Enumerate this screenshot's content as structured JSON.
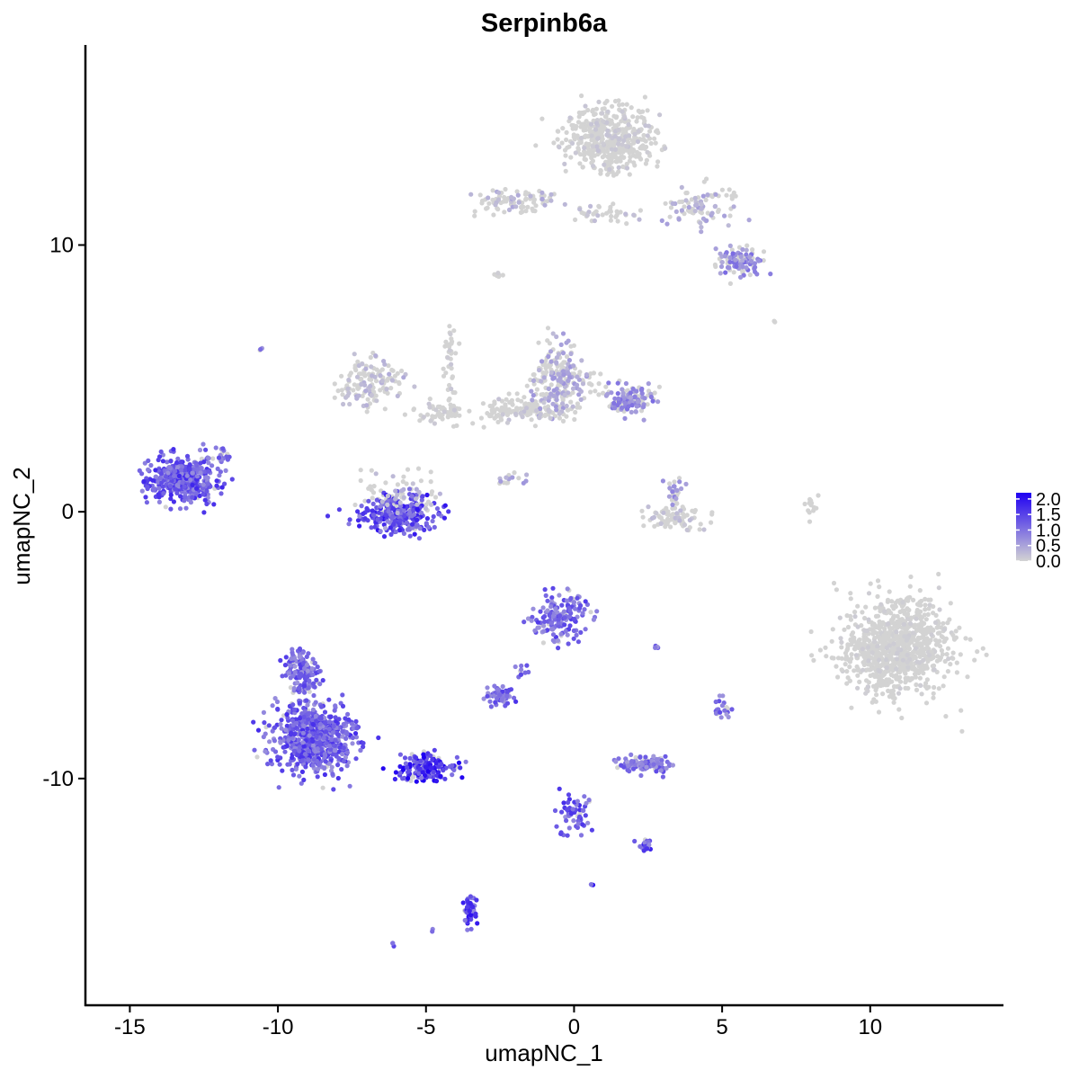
{
  "chart_data": {
    "type": "scatter",
    "title": "Serpinb6a",
    "xlabel": "umapNC_1",
    "ylabel": "umapNC_2",
    "xlim": [
      -16.5,
      14.5
    ],
    "ylim": [
      -18.5,
      17.5
    ],
    "x_ticks": [
      -15,
      -10,
      -5,
      0,
      5,
      10
    ],
    "x_tick_labels": [
      "-15",
      "-10",
      "-5",
      "0",
      "5",
      "10"
    ],
    "y_ticks": [
      10,
      0,
      -10
    ],
    "y_tick_labels": [
      "10",
      "0",
      "-10"
    ],
    "grid": false,
    "legend": {
      "placement": "right",
      "labels": [
        "2.0",
        "1.5",
        "1.0",
        "0.5",
        "0.0"
      ],
      "values": [
        2.0,
        1.5,
        1.0,
        0.5,
        0.0
      ],
      "range": [
        0,
        2.2
      ]
    },
    "color_low": "#d3d3d3",
    "color_high": "#1f00f2",
    "clusters": [
      {
        "center": [
          -13.2,
          1.2
        ],
        "spread": [
          1.0,
          0.75
        ],
        "count": 420,
        "expression": 1.25
      },
      {
        "center": [
          -12.0,
          2.2
        ],
        "spread": [
          0.4,
          0.3
        ],
        "count": 20,
        "expression": 1.0
      },
      {
        "center": [
          -10.6,
          6.1
        ],
        "spread": [
          0.05,
          0.05
        ],
        "count": 3,
        "expression": 1.0
      },
      {
        "center": [
          -6.0,
          -0.1
        ],
        "spread": [
          1.1,
          0.6
        ],
        "count": 260,
        "expression": 1.4
      },
      {
        "center": [
          -6.0,
          0.6
        ],
        "spread": [
          1.2,
          0.8
        ],
        "count": 80,
        "expression": 0.3
      },
      {
        "center": [
          -6.8,
          4.8
        ],
        "spread": [
          1.0,
          0.7
        ],
        "count": 140,
        "expression": 0.3
      },
      {
        "center": [
          -4.5,
          3.8
        ],
        "spread": [
          0.8,
          0.4
        ],
        "count": 60,
        "expression": 0.1
      },
      {
        "center": [
          -4.2,
          5.6
        ],
        "spread": [
          0.2,
          1.2
        ],
        "count": 35,
        "expression": 0.1
      },
      {
        "center": [
          -2.7,
          3.7
        ],
        "spread": [
          0.4,
          0.4
        ],
        "count": 20,
        "expression": 0.1
      },
      {
        "center": [
          -0.4,
          5.0
        ],
        "spread": [
          0.9,
          1.2
        ],
        "count": 230,
        "expression": 0.45
      },
      {
        "center": [
          -1.5,
          3.8
        ],
        "spread": [
          1.0,
          0.4
        ],
        "count": 120,
        "expression": 0.15
      },
      {
        "center": [
          1.9,
          4.2
        ],
        "spread": [
          0.8,
          0.5
        ],
        "count": 110,
        "expression": 0.75
      },
      {
        "center": [
          -2.0,
          1.2
        ],
        "spread": [
          0.6,
          0.3
        ],
        "count": 15,
        "expression": 0.5
      },
      {
        "center": [
          3.4,
          -0.2
        ],
        "spread": [
          0.9,
          0.4
        ],
        "count": 85,
        "expression": 0.2
      },
      {
        "center": [
          3.4,
          0.8
        ],
        "spread": [
          0.3,
          0.5
        ],
        "count": 25,
        "expression": 0.6
      },
      {
        "center": [
          8.0,
          0.3
        ],
        "spread": [
          0.15,
          0.5
        ],
        "count": 15,
        "expression": 0.05
      },
      {
        "center": [
          1.2,
          14.0
        ],
        "spread": [
          1.3,
          1.0
        ],
        "count": 520,
        "expression": 0.12
      },
      {
        "center": [
          -2.0,
          11.6
        ],
        "spread": [
          1.2,
          0.4
        ],
        "count": 90,
        "expression": 0.35
      },
      {
        "center": [
          1.0,
          11.2
        ],
        "spread": [
          1.2,
          0.3
        ],
        "count": 40,
        "expression": 0.2
      },
      {
        "center": [
          4.3,
          11.4
        ],
        "spread": [
          1.2,
          0.6
        ],
        "count": 85,
        "expression": 0.4
      },
      {
        "center": [
          5.5,
          9.4
        ],
        "spread": [
          0.7,
          0.5
        ],
        "count": 100,
        "expression": 0.75
      },
      {
        "center": [
          -2.6,
          8.9
        ],
        "spread": [
          0.15,
          0.1
        ],
        "count": 8,
        "expression": 0.05
      },
      {
        "center": [
          10.9,
          -5.1
        ],
        "spread": [
          1.55,
          1.5
        ],
        "count": 950,
        "expression": 0.06
      },
      {
        "center": [
          -0.5,
          -3.9
        ],
        "spread": [
          0.8,
          0.7
        ],
        "count": 160,
        "expression": 1.1
      },
      {
        "center": [
          -2.5,
          -6.9
        ],
        "spread": [
          0.4,
          0.3
        ],
        "count": 60,
        "expression": 1.15
      },
      {
        "center": [
          -1.8,
          -5.9
        ],
        "spread": [
          0.25,
          0.3
        ],
        "count": 10,
        "expression": 1.0
      },
      {
        "center": [
          2.3,
          -9.5
        ],
        "spread": [
          0.7,
          0.25
        ],
        "count": 100,
        "expression": 1.0
      },
      {
        "center": [
          5.0,
          -7.4
        ],
        "spread": [
          0.2,
          0.3
        ],
        "count": 20,
        "expression": 1.0
      },
      {
        "center": [
          2.8,
          -5.1
        ],
        "spread": [
          0.1,
          0.05
        ],
        "count": 5,
        "expression": 1.2
      },
      {
        "center": [
          0.0,
          -11.3
        ],
        "spread": [
          0.5,
          0.7
        ],
        "count": 60,
        "expression": 1.2
      },
      {
        "center": [
          2.4,
          -12.5
        ],
        "spread": [
          0.25,
          0.2
        ],
        "count": 20,
        "expression": 1.3
      },
      {
        "center": [
          0.6,
          -14.0
        ],
        "spread": [
          0.05,
          0.05
        ],
        "count": 3,
        "expression": 1.4
      },
      {
        "center": [
          -3.5,
          -15.0
        ],
        "spread": [
          0.2,
          0.6
        ],
        "count": 50,
        "expression": 1.4
      },
      {
        "center": [
          -8.8,
          -8.5
        ],
        "spread": [
          1.1,
          1.1
        ],
        "count": 700,
        "expression": 1.2
      },
      {
        "center": [
          -9.2,
          -6.0
        ],
        "spread": [
          0.5,
          0.7
        ],
        "count": 150,
        "expression": 1.1
      },
      {
        "center": [
          -5.0,
          -9.6
        ],
        "spread": [
          0.9,
          0.45
        ],
        "count": 160,
        "expression": 1.6
      },
      {
        "center": [
          -6.1,
          -16.2
        ],
        "spread": [
          0.05,
          0.05
        ],
        "count": 3,
        "expression": 1.3
      },
      {
        "center": [
          -4.8,
          -15.7
        ],
        "spread": [
          0.05,
          0.05
        ],
        "count": 2,
        "expression": 1.2
      },
      {
        "center": [
          6.8,
          7.1
        ],
        "spread": [
          0.05,
          0.05
        ],
        "count": 2,
        "expression": 0.0
      }
    ]
  }
}
